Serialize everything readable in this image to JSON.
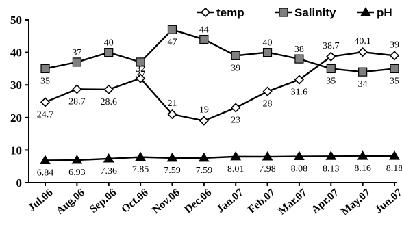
{
  "chart_data": {
    "type": "line",
    "title": "",
    "xlabel": "",
    "ylabel": "",
    "ylim": [
      0,
      50
    ],
    "yticks": [
      "0",
      "10",
      "20",
      "30",
      "40",
      "50"
    ],
    "categories": [
      "Jul.06",
      "Aug.06",
      "Sep.06",
      "Oct.06",
      "Nov.06",
      "Dec.06",
      "Jan.07",
      "Feb.07",
      "Mar.07",
      "Apr.07",
      "May.07",
      "Jun.07"
    ],
    "legend_position": "top-right",
    "grid": false,
    "series": [
      {
        "name": "temp",
        "marker": "diamond-open",
        "values": [
          24.7,
          28.7,
          28.6,
          32,
          21,
          19,
          23,
          28,
          31.6,
          38.7,
          40.1,
          39
        ],
        "labels": [
          "24.7",
          "28.7",
          "28.6",
          "32",
          "21",
          "19",
          "23",
          "28",
          "31.6",
          "38.7",
          "40.1",
          "39"
        ]
      },
      {
        "name": "Salinity",
        "marker": "square-gray",
        "values": [
          35,
          37,
          40,
          37,
          47,
          44,
          39,
          40,
          38,
          35,
          34,
          35
        ],
        "labels": [
          "35",
          "37",
          "40",
          "37",
          "47",
          "44",
          "39",
          "40",
          "38",
          "35",
          "34",
          "35"
        ]
      },
      {
        "name": "pH",
        "marker": "triangle-filled",
        "values": [
          6.84,
          6.93,
          7.36,
          7.85,
          7.59,
          7.59,
          8.01,
          7.98,
          8.08,
          8.13,
          8.16,
          8.18
        ],
        "labels": [
          "6.84",
          "6.93",
          "7.36",
          "7.85",
          "7.59",
          "7.59",
          "8.01",
          "7.98",
          "8.08",
          "8.13",
          "8.16",
          "8.18"
        ]
      }
    ]
  }
}
